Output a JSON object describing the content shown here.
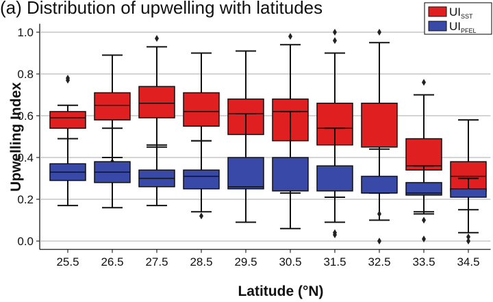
{
  "chart_data": {
    "type": "box",
    "title": "(a) Distribution of upwelling with latitudes",
    "x_label": "Latitude (°N)",
    "y_label": "Upwelling Index",
    "categories": [
      "25.5",
      "26.5",
      "27.5",
      "28.5",
      "29.5",
      "30.5",
      "31.5",
      "32.5",
      "33.5",
      "34.5"
    ],
    "ylim": [
      -0.04,
      1.04
    ],
    "yticks": [
      {
        "value": 0,
        "label": "0.0"
      },
      0.2,
      0.4,
      0.6,
      0.8,
      {
        "value": 1,
        "label": "1.0"
      }
    ],
    "grid": true,
    "legend": "top-right",
    "series": [
      {
        "name": "UI",
        "subscript": "SST",
        "color": "#e02020",
        "boxes": [
          {
            "low": 0.49,
            "q1": 0.54,
            "median": 0.59,
            "q3": 0.62,
            "high": 0.65,
            "outliers": [
              0.78,
              0.77
            ]
          },
          {
            "low": 0.4,
            "q1": 0.58,
            "median": 0.65,
            "q3": 0.71,
            "high": 0.89,
            "outliers": [
              0.38
            ]
          },
          {
            "low": 0.45,
            "q1": 0.59,
            "median": 0.66,
            "q3": 0.74,
            "high": 0.93,
            "outliers": [
              0.97
            ]
          },
          {
            "low": 0.48,
            "q1": 0.55,
            "median": 0.62,
            "q3": 0.71,
            "high": 0.9,
            "outliers": []
          },
          {
            "low": 0.26,
            "q1": 0.51,
            "median": 0.61,
            "q3": 0.68,
            "high": 0.91,
            "outliers": []
          },
          {
            "low": 0.23,
            "q1": 0.48,
            "median": 0.62,
            "q3": 0.68,
            "high": 0.94,
            "outliers": [
              0.98
            ]
          },
          {
            "low": 0.21,
            "q1": 0.46,
            "median": 0.54,
            "q3": 0.66,
            "high": 0.9,
            "outliers": [
              1.0,
              0.96
            ]
          },
          {
            "low": 0.23,
            "q1": 0.45,
            "median": 0.45,
            "q3": 0.66,
            "high": 0.95,
            "outliers": [
              1.0
            ]
          },
          {
            "low": 0.14,
            "q1": 0.34,
            "median": 0.36,
            "q3": 0.49,
            "high": 0.7,
            "outliers": [
              0.76
            ]
          },
          {
            "low": 0.15,
            "q1": 0.24,
            "median": 0.31,
            "q3": 0.38,
            "high": 0.58,
            "outliers": []
          }
        ]
      },
      {
        "name": "UI",
        "subscript": "PFEL",
        "color": "#3949a8",
        "boxes": [
          {
            "low": 0.17,
            "q1": 0.29,
            "median": 0.33,
            "q3": 0.37,
            "high": 0.49,
            "outliers": []
          },
          {
            "low": 0.16,
            "q1": 0.28,
            "median": 0.33,
            "q3": 0.38,
            "high": 0.54,
            "outliers": []
          },
          {
            "low": 0.17,
            "q1": 0.26,
            "median": 0.3,
            "q3": 0.34,
            "high": 0.46,
            "outliers": []
          },
          {
            "low": 0.14,
            "q1": 0.25,
            "median": 0.31,
            "q3": 0.34,
            "high": 0.48,
            "outliers": [
              0.12
            ]
          },
          {
            "low": 0.09,
            "q1": 0.25,
            "median": 0.26,
            "q3": 0.4,
            "high": 0.61,
            "outliers": []
          },
          {
            "low": 0.06,
            "q1": 0.24,
            "median": 0.24,
            "q3": 0.4,
            "high": 0.62,
            "outliers": []
          },
          {
            "low": 0.09,
            "q1": 0.24,
            "median": 0.24,
            "q3": 0.36,
            "high": 0.54,
            "outliers": [
              0.03,
              0.04
            ]
          },
          {
            "low": 0.1,
            "q1": 0.23,
            "median": 0.23,
            "q3": 0.31,
            "high": 0.44,
            "outliers": [
              0.0,
              0.13
            ]
          },
          {
            "low": 0.13,
            "q1": 0.22,
            "median": 0.23,
            "q3": 0.28,
            "high": 0.36,
            "outliers": [
              0.01,
              0.1
            ]
          },
          {
            "low": 0.04,
            "q1": 0.21,
            "median": 0.25,
            "q3": 0.25,
            "high": 0.3,
            "outliers": [
              0.0,
              0.02
            ]
          }
        ]
      }
    ]
  }
}
